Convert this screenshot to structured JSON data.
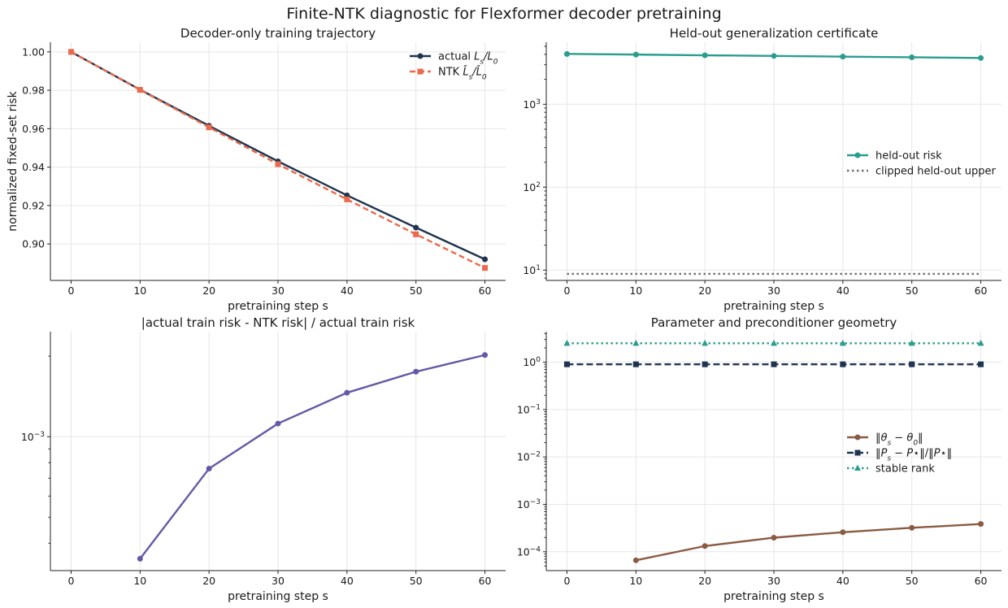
{
  "figure_title": "Finite-NTK diagnostic for Flexformer decoder pretraining",
  "chart_data": [
    {
      "type": "line",
      "title": "Decoder-only training trajectory",
      "xlabel": "pretraining step s",
      "ylabel": "normalized fixed-set risk",
      "x": [
        0,
        10,
        20,
        30,
        40,
        50,
        60
      ],
      "xlim": [
        -3,
        63
      ],
      "ylim": [
        0.881,
        1.005
      ],
      "yscale": "linear",
      "xticks": [
        0,
        10,
        20,
        30,
        40,
        50,
        60
      ],
      "yticks": [
        {
          "v": 0.9,
          "label": "0.90"
        },
        {
          "v": 0.92,
          "label": "0.92"
        },
        {
          "v": 0.94,
          "label": "0.94"
        },
        {
          "v": 0.96,
          "label": "0.96"
        },
        {
          "v": 0.98,
          "label": "0.98"
        },
        {
          "v": 1.0,
          "label": "1.00"
        }
      ],
      "grid": true,
      "legend_position": "top-right",
      "series": [
        {
          "name": "actual L_s/L_0",
          "legend_html": "actual <tspan font-style='italic'>L<tspan baseline-shift='sub' font-size='9'>s</tspan>/L<tspan baseline-shift='sub' font-size='9'>0</tspan></tspan>",
          "values": [
            1.0,
            0.9803,
            0.9615,
            0.943,
            0.9253,
            0.9085,
            0.892
          ],
          "color": "#1f3450",
          "dash": "",
          "marker": "circle"
        },
        {
          "name": "NTK L̂_s/L̂_0",
          "legend_html": "NTK <tspan font-style='italic'>L̂<tspan baseline-shift='sub' font-size='9'>s</tspan>/L̂<tspan baseline-shift='sub' font-size='9'>0</tspan></tspan>",
          "values": [
            1.0,
            0.9802,
            0.9607,
            0.9415,
            0.9232,
            0.905,
            0.8875
          ],
          "color": "#ea6a4b",
          "dash": "7 4",
          "marker": "square"
        }
      ]
    },
    {
      "type": "line",
      "title": "Held-out generalization certificate",
      "xlabel": "pretraining step s",
      "ylabel": "",
      "x": [
        0,
        10,
        20,
        30,
        40,
        50,
        60
      ],
      "xlim": [
        -3,
        63
      ],
      "ylim": [
        7.5,
        5600
      ],
      "yscale": "log",
      "xticks": [
        0,
        10,
        20,
        30,
        40,
        50,
        60
      ],
      "yticks": [
        {
          "v": 10,
          "label": "10",
          "exp": "1"
        },
        {
          "v": 100,
          "label": "10",
          "exp": "2"
        },
        {
          "v": 1000,
          "label": "10",
          "exp": "3"
        }
      ],
      "grid": true,
      "legend_position": "center-right",
      "series": [
        {
          "name": "held-out risk",
          "values": [
            4050,
            3980,
            3900,
            3830,
            3760,
            3690,
            3620
          ],
          "color": "#2a9d8f",
          "dash": "",
          "marker": "circle"
        },
        {
          "name": "clipped held-out upper",
          "values": [
            9,
            9,
            9,
            9,
            9,
            9,
            9
          ],
          "color": "#707070",
          "dash": "2.5 3.5",
          "marker": "none"
        }
      ]
    },
    {
      "type": "line",
      "title": "|actual train risk - NTK risk| / actual train risk",
      "xlabel": "pretraining step s",
      "ylabel": "",
      "x": [
        0,
        10,
        20,
        30,
        40,
        50,
        60
      ],
      "xlim": [
        -3,
        63
      ],
      "ylim": [
        0.000316,
        0.00247
      ],
      "yscale": "log",
      "xticks": [
        0,
        10,
        20,
        30,
        40,
        50,
        60
      ],
      "yticks": [
        {
          "v": 0.001,
          "label": "10",
          "exp": "−3"
        }
      ],
      "grid": true,
      "legend_position": "none",
      "series": [
        {
          "name": "",
          "values": [
            null,
            0.00035,
            0.00076,
            0.00112,
            0.00146,
            0.00175,
            0.00202
          ],
          "color": "#6559a6",
          "dash": "",
          "marker": "circle"
        }
      ]
    },
    {
      "type": "line",
      "title": "Parameter and preconditioner geometry",
      "xlabel": "pretraining step s",
      "ylabel": "",
      "x": [
        0,
        10,
        20,
        30,
        40,
        50,
        60
      ],
      "xlim": [
        -3,
        63
      ],
      "ylim": [
        4e-05,
        4.4
      ],
      "yscale": "log",
      "xticks": [
        0,
        10,
        20,
        30,
        40,
        50,
        60
      ],
      "yticks": [
        {
          "v": 0.0001,
          "label": "10",
          "exp": "−4"
        },
        {
          "v": 0.001,
          "label": "10",
          "exp": "−3"
        },
        {
          "v": 0.01,
          "label": "10",
          "exp": "−2"
        },
        {
          "v": 0.1,
          "label": "10",
          "exp": "−1"
        },
        {
          "v": 1,
          "label": "10",
          "exp": "0"
        }
      ],
      "grid": true,
      "legend_position": "center-right",
      "series": [
        {
          "name": "‖θ_s − θ_0‖",
          "legend_html": "‖<tspan font-style='italic'>θ<tspan baseline-shift='sub' font-size='9'>s</tspan></tspan> − <tspan font-style='italic'>θ<tspan baseline-shift='sub' font-size='9'>0</tspan></tspan>‖",
          "values": [
            null,
            6.6e-05,
            0.000132,
            0.000198,
            0.000258,
            0.00032,
            0.000385
          ],
          "color": "#8c5a43",
          "dash": "",
          "marker": "circle"
        },
        {
          "name": "‖P_s − P⋆‖/‖P⋆‖",
          "legend_html": "‖<tspan font-style='italic'>P<tspan baseline-shift='sub' font-size='9'>s</tspan></tspan> − <tspan font-style='italic'>P</tspan>⋆‖/‖<tspan font-style='italic'>P</tspan>⋆‖",
          "values": [
            0.9,
            0.9,
            0.9,
            0.9,
            0.9,
            0.9,
            0.9
          ],
          "color": "#1f3450",
          "dash": "8 4",
          "marker": "square"
        },
        {
          "name": "stable rank",
          "values": [
            2.5,
            2.5,
            2.5,
            2.5,
            2.5,
            2.5,
            2.5
          ],
          "color": "#2a9d8f",
          "dash": "2.5 3.5",
          "marker": "triangle"
        }
      ]
    }
  ]
}
